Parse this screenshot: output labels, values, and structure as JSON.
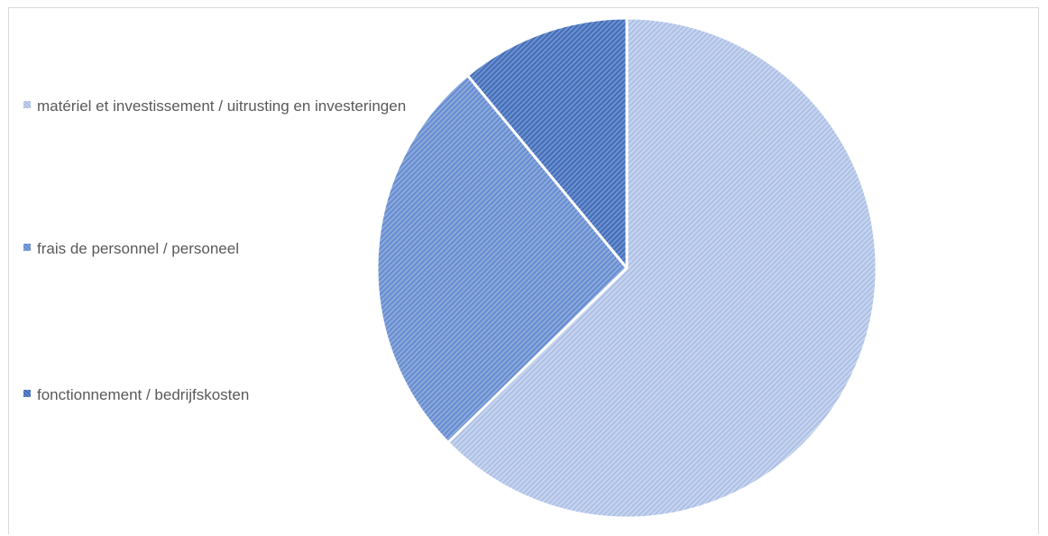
{
  "chart_data": {
    "type": "pie",
    "title": "",
    "slices": [
      {
        "label": "matériel et investissement / uitrusting en investeringen",
        "value": 62.7,
        "color": "#c7d4ee",
        "pattern_fg": "#a8bce5"
      },
      {
        "label": "frais de personnel / personeel",
        "value": 26.3,
        "color": "#8ba8db",
        "pattern_fg": "#5f87cf"
      },
      {
        "label": "fonctionnement / bedrijfskosten",
        "value": 11.0,
        "color": "#6a8fce",
        "pattern_fg": "#3d67b3"
      }
    ],
    "legend_position": "left",
    "pattern": "diagonal-hatch"
  }
}
